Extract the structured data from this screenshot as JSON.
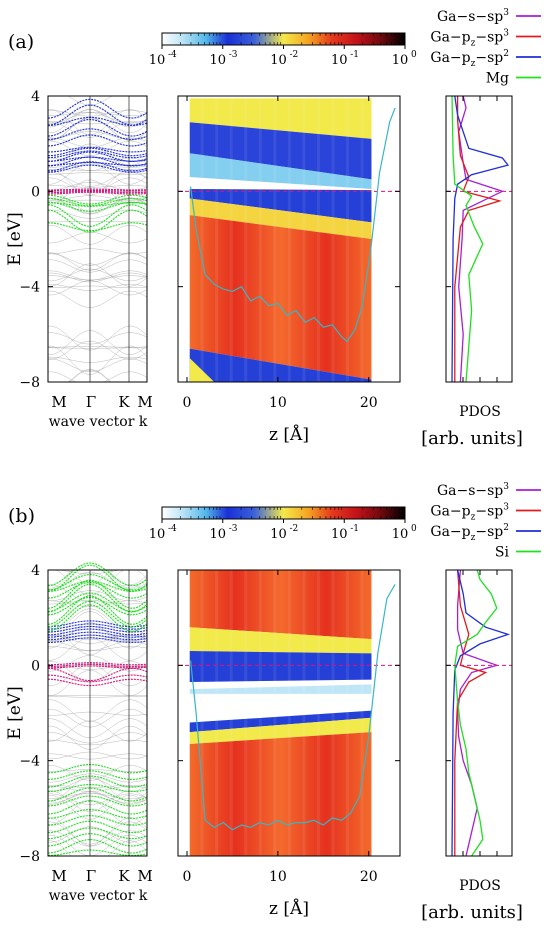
{
  "panels": [
    {
      "label": "(a)",
      "colorbar": {
        "ticks": [
          "10",
          "10",
          "10",
          "10",
          "10"
        ],
        "exponents": [
          "-4",
          "-3",
          "-2",
          "-1",
          "0"
        ],
        "tick_values": [
          -4,
          -3,
          -2,
          -1,
          0
        ]
      },
      "legend": [
        {
          "text": "Ga−s−sp",
          "sup": "3",
          "sub": "",
          "color": "#a81fd6"
        },
        {
          "text": "Ga−p",
          "sub": "z",
          "text2": "−sp",
          "sup": "3",
          "color": "#e31a1c"
        },
        {
          "text": "Ga−p",
          "sub": "z",
          "text2": "−sp",
          "sup": "2",
          "color": "#1f2ed6"
        },
        {
          "text": "Mg",
          "sub": "",
          "sup": "",
          "color": "#1ee01e"
        }
      ],
      "band_structure": {
        "kpoint_labels": [
          "M",
          "Γ",
          "K",
          "M"
        ],
        "xlabel": "wave vector k",
        "ylabel": "E [eV]"
      },
      "ldos_map": {
        "xlabel": "z [Å]"
      },
      "pdos": {
        "xlabel_top": "PDOS",
        "xlabel_bottom": "[arb. units]"
      },
      "chart_data": {
        "type": "line",
        "energy_range": [
          -8,
          4
        ],
        "energy_ticks": [
          4,
          0,
          -4,
          -8
        ],
        "energy_tick_labels": [
          "4",
          "0",
          "−4",
          "−8"
        ],
        "z_range": [
          0,
          23
        ],
        "z_ticks": [
          0,
          10,
          20
        ],
        "band_colors": {
          "valence_dopant": "#1ee01e",
          "conduction": "#1f2ed6",
          "fermi_state": "#e0127d",
          "background": "#888888"
        },
        "potential_profile": {
          "z": [
            0.4,
            1.0,
            2.0,
            3.0,
            4.0,
            5.0,
            6.0,
            7.0,
            8.0,
            9.0,
            10.0,
            11.0,
            12.0,
            13.0,
            14.0,
            15.0,
            16.0,
            17.0,
            17.6,
            18.5,
            19.3,
            20.2,
            21.2,
            22.3,
            22.9
          ],
          "E": [
            0.2,
            -1.6,
            -3.5,
            -3.9,
            -4.1,
            -4.2,
            -4.0,
            -4.6,
            -4.4,
            -4.8,
            -4.7,
            -5.2,
            -5.0,
            -5.5,
            -5.3,
            -5.7,
            -5.6,
            -6.1,
            -6.3,
            -5.8,
            -4.8,
            -2.5,
            0.8,
            2.9,
            3.5
          ]
        },
        "pdos_series": [
          {
            "name": "Ga−s−sp3",
            "E": [
              -8,
              -6,
              -4,
              -2,
              -0.8,
              0,
              0.5,
              1.2,
              2.5,
              3.5,
              4
            ],
            "dos": [
              0.15,
              0.2,
              0.12,
              0.18,
              0.2,
              0.9,
              0.25,
              0.2,
              0.12,
              0.25,
              0.2
            ]
          },
          {
            "name": "Ga−pz−sp3",
            "E": [
              -8,
              -4,
              -1.5,
              -0.8,
              -0.4,
              0,
              0.6,
              1.5,
              3,
              4
            ],
            "dos": [
              0.05,
              0.05,
              0.15,
              0.3,
              0.85,
              0.2,
              0.3,
              0.15,
              0.1,
              0.1
            ]
          },
          {
            "name": "Ga−pz−sp2",
            "E": [
              -8,
              -2,
              -0.3,
              0.3,
              0.7,
              1.1,
              1.4,
              1.8,
              2.5,
              3.2,
              4
            ],
            "dos": [
              0.0,
              0.02,
              0.05,
              0.1,
              0.35,
              1.0,
              0.9,
              0.3,
              0.2,
              0.1,
              0.05
            ]
          },
          {
            "name": "Mg",
            "E": [
              -8,
              -6.5,
              -5,
              -3.5,
              -2.2,
              -1.5,
              -0.6,
              -0.2,
              0.3,
              1.5,
              4
            ],
            "dos": [
              0.25,
              0.3,
              0.35,
              0.3,
              0.55,
              0.4,
              0.25,
              0.35,
              0.05,
              0.02,
              0.0
            ]
          }
        ]
      }
    },
    {
      "label": "(b)",
      "colorbar": {
        "ticks": [
          "10",
          "10",
          "10",
          "10",
          "10"
        ],
        "exponents": [
          "-4",
          "-3",
          "-2",
          "-1",
          "0"
        ],
        "tick_values": [
          -4,
          -3,
          -2,
          -1,
          0
        ]
      },
      "legend": [
        {
          "text": "Ga−s−sp",
          "sup": "3",
          "sub": "",
          "color": "#a81fd6"
        },
        {
          "text": "Ga−p",
          "sub": "z",
          "text2": "−sp",
          "sup": "3",
          "color": "#e31a1c"
        },
        {
          "text": "Ga−p",
          "sub": "z",
          "text2": "−sp",
          "sup": "2",
          "color": "#1f2ed6"
        },
        {
          "text": "Si",
          "sub": "",
          "sup": "",
          "color": "#1ee01e"
        }
      ],
      "band_structure": {
        "kpoint_labels": [
          "M",
          "Γ",
          "K",
          "M"
        ],
        "xlabel": "wave vector k",
        "ylabel": "E [eV]"
      },
      "ldos_map": {
        "xlabel": "z [Å]"
      },
      "pdos": {
        "xlabel_top": "PDOS",
        "xlabel_bottom": "[arb. units]"
      },
      "chart_data": {
        "type": "line",
        "energy_range": [
          -8,
          4
        ],
        "energy_ticks": [
          4,
          0,
          -4,
          -8
        ],
        "energy_tick_labels": [
          "4",
          "0",
          "−4",
          "−8"
        ],
        "z_range": [
          0,
          23
        ],
        "z_ticks": [
          0,
          10,
          20
        ],
        "band_colors": {
          "valence_dopant": "#1ee01e",
          "conduction": "#1f2ed6",
          "fermi_state": "#e0127d",
          "background": "#888888"
        },
        "potential_profile": {
          "z": [
            0.4,
            1.0,
            2.0,
            3.0,
            4.0,
            5.0,
            6.0,
            7.0,
            8.0,
            9.0,
            10.0,
            11.0,
            12.0,
            13.0,
            14.0,
            15.0,
            16.0,
            17.0,
            18.0,
            19.0,
            20.0,
            21.0,
            22.0,
            22.9
          ],
          "E": [
            0.2,
            -2.0,
            -6.5,
            -6.8,
            -6.6,
            -6.9,
            -6.7,
            -6.8,
            -6.6,
            -6.7,
            -6.5,
            -6.7,
            -6.6,
            -6.6,
            -6.5,
            -6.7,
            -6.4,
            -6.5,
            -6.2,
            -5.5,
            -3.0,
            0.5,
            2.8,
            3.4
          ]
        },
        "pdos_series": [
          {
            "name": "Ga−s−sp3",
            "E": [
              -8,
              -7,
              -6,
              -5,
              -4,
              -3,
              -2,
              -1,
              -0.3,
              0,
              0.5,
              1.5,
              2.5,
              4
            ],
            "dos": [
              0.25,
              0.35,
              0.45,
              0.35,
              0.2,
              0.12,
              0.1,
              0.15,
              0.35,
              0.8,
              0.2,
              0.1,
              0.1,
              0.15
            ]
          },
          {
            "name": "Ga−pz−sp3",
            "E": [
              -8,
              -4,
              -1.5,
              -0.7,
              -0.3,
              0,
              0.5,
              1.3,
              2.5,
              4
            ],
            "dos": [
              0.05,
              0.05,
              0.1,
              0.3,
              0.6,
              0.15,
              0.2,
              0.3,
              0.15,
              0.1
            ]
          },
          {
            "name": "Ga−pz−sp2",
            "E": [
              -8,
              -2,
              -0.2,
              0.4,
              0.9,
              1.3,
              1.6,
              2.2,
              3,
              4
            ],
            "dos": [
              0.0,
              0.02,
              0.05,
              0.15,
              0.5,
              1.0,
              0.6,
              0.25,
              0.2,
              0.1
            ]
          },
          {
            "name": "Si",
            "E": [
              -8,
              -7.3,
              -6.5,
              -5.5,
              -4.5,
              -3.5,
              -2.5,
              -1.5,
              0,
              0.8,
              1.3,
              1.8,
              2.4,
              3.0,
              3.6,
              4
            ],
            "dos": [
              0.35,
              0.55,
              0.5,
              0.4,
              0.3,
              0.25,
              0.15,
              0.1,
              0.05,
              0.1,
              0.45,
              0.6,
              0.8,
              0.7,
              0.5,
              0.45
            ]
          }
        ]
      }
    }
  ]
}
